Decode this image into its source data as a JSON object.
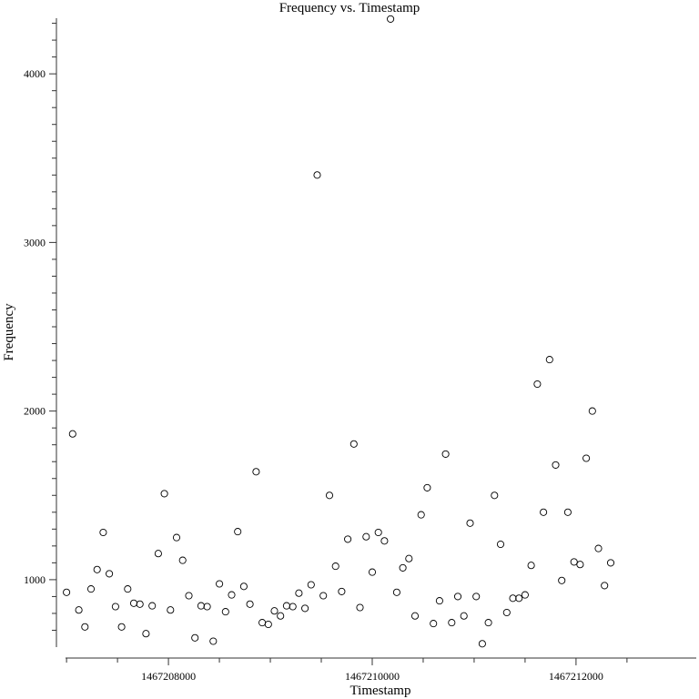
{
  "chart_data": {
    "type": "scatter",
    "title": "Frequency vs. Timestamp",
    "xlabel": "Timestamp",
    "ylabel": "Frequency",
    "xlim": [
      1467206990,
      1467213180
    ],
    "ylim": [
      600,
      4330
    ],
    "x_ticks": [
      1467208000,
      1467210000,
      1467212000
    ],
    "x_minor_ticks": [
      1467207000,
      1467207500,
      1467208500,
      1467209000,
      1467209500,
      1467210500,
      1467211000,
      1467211500,
      1467212500
    ],
    "y_ticks": [
      1000,
      2000,
      3000,
      4000
    ],
    "y_minor_ticks": [
      700,
      800,
      900,
      1100,
      1200,
      1300,
      1400,
      1500,
      1600,
      1700,
      1800,
      1900,
      2100,
      2200,
      2300,
      2400,
      2500,
      2600,
      2700,
      2800,
      2900,
      3100,
      3200,
      3300,
      3400,
      3500,
      3600,
      3700,
      3800,
      3900,
      4100,
      4200,
      4300
    ],
    "grid": false,
    "x": [
      1467207000,
      1467207060,
      1467207120,
      1467207180,
      1467207240,
      1467207300,
      1467207360,
      1467207420,
      1467207480,
      1467207540,
      1467207600,
      1467207660,
      1467207720,
      1467207780,
      1467207840,
      1467207900,
      1467207960,
      1467208020,
      1467208080,
      1467208140,
      1467208200,
      1467208260,
      1467208320,
      1467208380,
      1467208440,
      1467208500,
      1467208560,
      1467208620,
      1467208680,
      1467208740,
      1467208800,
      1467208860,
      1467208920,
      1467208980,
      1467209040,
      1467209100,
      1467209160,
      1467209220,
      1467209280,
      1467209340,
      1467209400,
      1467209460,
      1467209520,
      1467209580,
      1467209640,
      1467209700,
      1467209760,
      1467209820,
      1467209880,
      1467209940,
      1467210000,
      1467210060,
      1467210120,
      1467210180,
      1467210240,
      1467210300,
      1467210360,
      1467210420,
      1467210480,
      1467210540,
      1467210600,
      1467210660,
      1467210720,
      1467210780,
      1467210840,
      1467210900,
      1467210960,
      1467211020,
      1467211080,
      1467211140,
      1467211200,
      1467211260,
      1467211320,
      1467211380,
      1467211440,
      1467211500,
      1467211560,
      1467211620,
      1467211680,
      1467211740,
      1467211800,
      1467211860,
      1467211920,
      1467211980,
      1467212040,
      1467212100,
      1467212160,
      1467212220,
      1467212280,
      1467212340
    ],
    "y": [
      925,
      1865,
      820,
      720,
      945,
      1060,
      1280,
      1035,
      840,
      720,
      945,
      860,
      855,
      680,
      845,
      1155,
      1510,
      820,
      1250,
      1115,
      905,
      655,
      845,
      840,
      635,
      975,
      810,
      910,
      1285,
      960,
      855,
      1640,
      745,
      735,
      815,
      785,
      845,
      840,
      920,
      830,
      970,
      3400,
      905,
      1500,
      1080,
      930,
      1240,
      1805,
      835,
      1255,
      1045,
      1280,
      1230,
      4325,
      925,
      1070,
      1125,
      785,
      1385,
      1545,
      740,
      875,
      1745,
      745,
      900,
      785,
      1335,
      900,
      620,
      745,
      1500,
      1210,
      805,
      890,
      890,
      910,
      1085,
      2160,
      1400,
      2305,
      1680,
      995,
      1400,
      1105,
      1090,
      1720,
      2000,
      1185,
      965,
      1100
    ]
  }
}
